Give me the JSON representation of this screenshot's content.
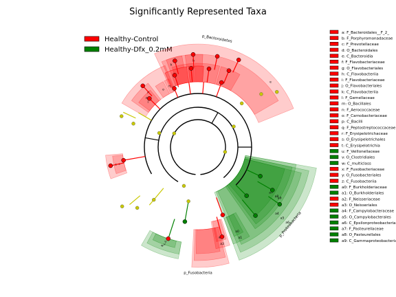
{
  "chart_data": {
    "type": "cladogram",
    "title": "Significantly Represented Taxa",
    "groups": [
      {
        "name": "Healthy-Control",
        "color": "#ff0000"
      },
      {
        "name": "Healthy-Dfx_0.2mM",
        "color": "#008000"
      }
    ],
    "other_color": "#c8c800",
    "taxa": [
      {
        "key": "a",
        "name": "F_Bacteroidales__F_2_",
        "group": "Healthy-Control"
      },
      {
        "key": "b",
        "name": "F_Porphyromonadaceae",
        "group": "Healthy-Control"
      },
      {
        "key": "c",
        "name": "F_Prevotellaceae",
        "group": "Healthy-Control"
      },
      {
        "key": "d",
        "name": "O_Bacteroidales",
        "group": "Healthy-Control"
      },
      {
        "key": "e",
        "name": "C_Bacteroidia",
        "group": "Healthy-Control"
      },
      {
        "key": "f",
        "name": "F_Flavobacteriaceae",
        "group": "Healthy-Control"
      },
      {
        "key": "g",
        "name": "O_Flavobacteriales",
        "group": "Healthy-Control"
      },
      {
        "key": "h",
        "name": "C_Flavobacteriia",
        "group": "Healthy-Control"
      },
      {
        "key": "i",
        "name": "F_Flavobacteriaceae",
        "group": "Healthy-Control"
      },
      {
        "key": "j",
        "name": "O_Flavobacteriales",
        "group": "Healthy-Control"
      },
      {
        "key": "k",
        "name": "C_Flavobacteriia",
        "group": "Healthy-Control"
      },
      {
        "key": "l",
        "name": "F_Gemellaceae",
        "group": "Healthy-Control"
      },
      {
        "key": "m",
        "name": "O_Bacillales",
        "group": "Healthy-Control"
      },
      {
        "key": "n",
        "name": "F_Aerococcaceae",
        "group": "Healthy-Control"
      },
      {
        "key": "o",
        "name": "F_Carnobacteriaceae",
        "group": "Healthy-Control"
      },
      {
        "key": "p",
        "name": "C_Bacilli",
        "group": "Healthy-Control"
      },
      {
        "key": "q",
        "name": "F_Peptostreptococcaceae",
        "group": "Healthy-Control"
      },
      {
        "key": "r",
        "name": "F_Erysipelotrichaceae",
        "group": "Healthy-Control"
      },
      {
        "key": "s",
        "name": "O_Erysipelotrichales",
        "group": "Healthy-Control"
      },
      {
        "key": "t",
        "name": "C_Erysipelotrichia",
        "group": "Healthy-Control"
      },
      {
        "key": "u",
        "name": "F_Veillonellaceae",
        "group": "Healthy-Dfx_0.2mM"
      },
      {
        "key": "v",
        "name": "O_Clostridiales",
        "group": "Healthy-Dfx_0.2mM"
      },
      {
        "key": "w",
        "name": "C_multiclass",
        "group": "Healthy-Dfx_0.2mM"
      },
      {
        "key": "x",
        "name": "F_Fusobacteriaceae",
        "group": "Healthy-Control"
      },
      {
        "key": "y",
        "name": "O_Fusobacteriales",
        "group": "Healthy-Control"
      },
      {
        "key": "z",
        "name": "C_Fusobacteriia",
        "group": "Healthy-Control"
      },
      {
        "key": "a0",
        "name": "F_Burkholderiaceae",
        "group": "Healthy-Dfx_0.2mM"
      },
      {
        "key": "a1",
        "name": "O_Burkholderiales",
        "group": "Healthy-Dfx_0.2mM"
      },
      {
        "key": "a2",
        "name": "F_Neisseriaceae",
        "group": "Healthy-Control"
      },
      {
        "key": "a3",
        "name": "O_Neisseriales",
        "group": "Healthy-Control"
      },
      {
        "key": "a4",
        "name": "F_Campylobacteraceae",
        "group": "Healthy-Dfx_0.2mM"
      },
      {
        "key": "a5",
        "name": "O_Campylobacterales",
        "group": "Healthy-Dfx_0.2mM"
      },
      {
        "key": "a6",
        "name": "C_Epsilonproteobacteria",
        "group": "Healthy-Dfx_0.2mM"
      },
      {
        "key": "a7",
        "name": "F_Pasteurellaceae",
        "group": "Healthy-Dfx_0.2mM"
      },
      {
        "key": "a8",
        "name": "O_Pasteurellales",
        "group": "Healthy-Dfx_0.2mM"
      },
      {
        "key": "a9",
        "name": "C_Gammaproteobacteria",
        "group": "Healthy-Dfx_0.2mM"
      }
    ],
    "clade_labels": [
      {
        "text": "p_Bacteroidetes",
        "group": "Healthy-Control"
      },
      {
        "text": "p_Proteobacteria",
        "group": "Healthy-Dfx_0.2mM"
      },
      {
        "text": "p_Fusobacteria",
        "group": "Healthy-Control"
      }
    ]
  }
}
